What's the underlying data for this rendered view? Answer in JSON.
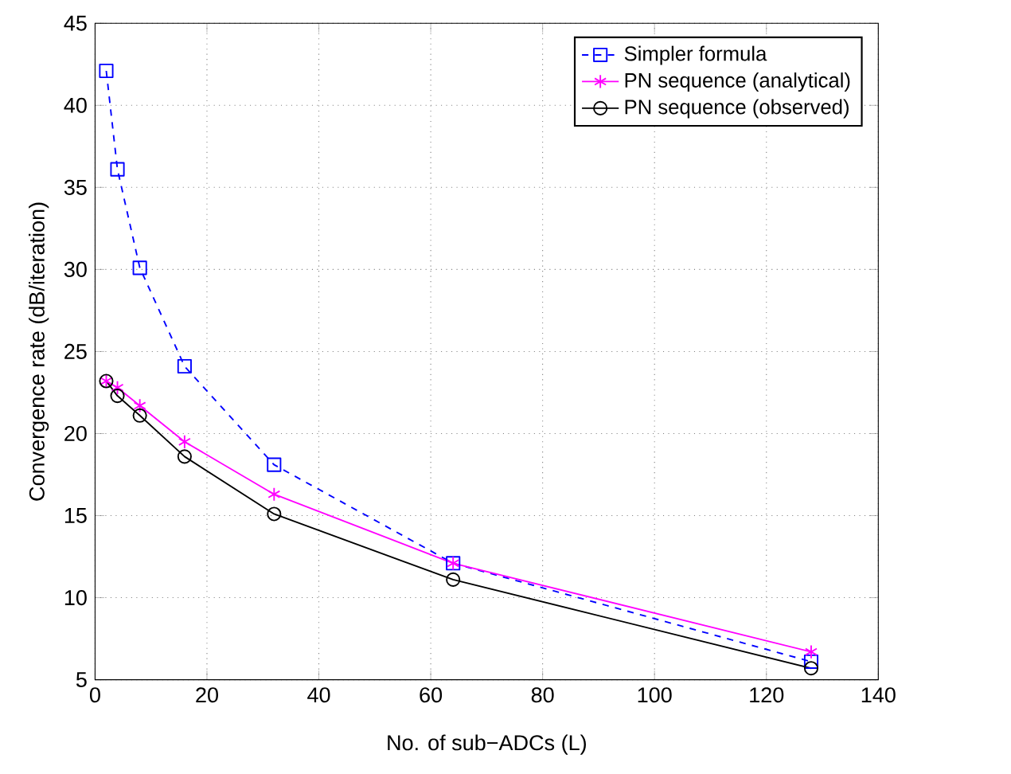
{
  "chart_data": {
    "type": "line",
    "xlabel": "No. of sub−ADCs (L)",
    "ylabel": "Convergence rate (dB/iteration)",
    "x": [
      2,
      4,
      8,
      16,
      32,
      64,
      128
    ],
    "series": [
      {
        "name": "Simpler formula",
        "color": "#0000ff",
        "marker": "square",
        "line_style": "dashed",
        "values": [
          42.1,
          36.1,
          30.1,
          24.1,
          18.1,
          12.1,
          6.1
        ]
      },
      {
        "name": "PN sequence (analytical)",
        "color": "#ff00ff",
        "marker": "cross",
        "line_style": "solid",
        "values": [
          23.2,
          22.8,
          21.7,
          19.5,
          16.3,
          12.1,
          6.7
        ]
      },
      {
        "name": "PN sequence (observed)",
        "color": "#000000",
        "marker": "circle",
        "line_style": "solid",
        "values": [
          23.2,
          22.3,
          21.1,
          18.6,
          15.1,
          11.1,
          5.7
        ]
      }
    ],
    "xlim": [
      0,
      140
    ],
    "ylim": [
      5,
      45
    ],
    "xticks": [
      0,
      20,
      40,
      60,
      80,
      100,
      120,
      140
    ],
    "yticks": [
      5,
      10,
      15,
      20,
      25,
      30,
      35,
      40,
      45
    ],
    "grid": true,
    "legend": "top right"
  }
}
